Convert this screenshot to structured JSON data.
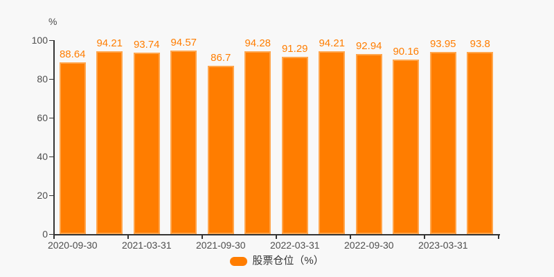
{
  "chart": {
    "unit_label": "%",
    "legend_label": "股票仓位（%）"
  },
  "chart_data": {
    "type": "bar",
    "title": "",
    "series_name": "股票仓位（%）",
    "values": [
      88.64,
      94.21,
      93.74,
      94.57,
      86.7,
      94.28,
      91.29,
      94.21,
      92.94,
      90.16,
      93.95,
      93.8
    ],
    "x_tick_labels": [
      "2020-09-30",
      "2021-03-31",
      "2021-09-30",
      "2022-03-31",
      "2022-09-30",
      "2023-03-31"
    ],
    "bars_per_x_label": 2,
    "y_ticks": [
      0,
      20,
      40,
      60,
      80,
      100
    ],
    "ylim": [
      0,
      100
    ],
    "ylabel": "%",
    "grid": false,
    "legend_position": "bottom",
    "colors": {
      "bar_fill": "#ff7d00",
      "bar_border": "#ffa64d",
      "value_label": "#ff7d00",
      "axis_line": "#333333",
      "axis_text": "#4d4d4d",
      "legend_text": "#333333",
      "background": "#f8f8f8"
    }
  }
}
